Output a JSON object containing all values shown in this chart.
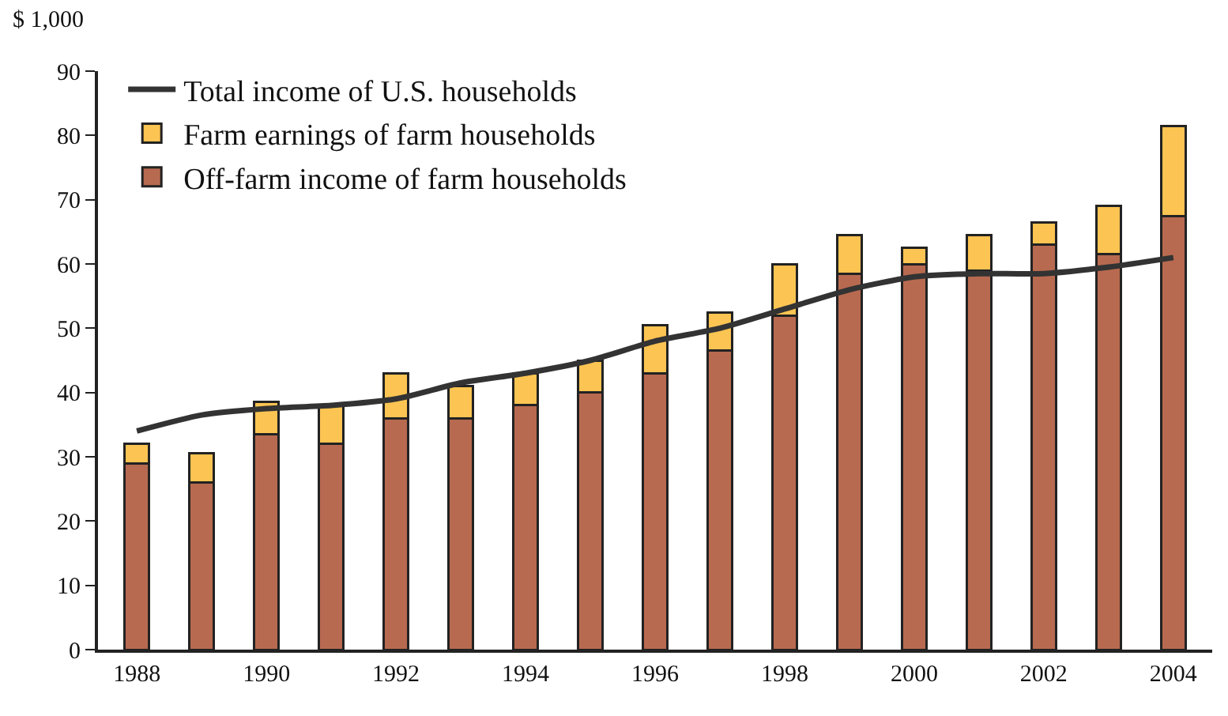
{
  "chart_data": {
    "type": "bar",
    "stacked": true,
    "ylabel": "$ 1,000",
    "x": [
      1988,
      1989,
      1990,
      1991,
      1992,
      1993,
      1994,
      1995,
      1996,
      1997,
      1998,
      1999,
      2000,
      2001,
      2002,
      2003,
      2004
    ],
    "series": [
      {
        "name": "Off-farm income of farm households",
        "color": "#b86a50",
        "values": [
          29,
          26,
          33.5,
          32,
          36,
          36,
          38,
          40,
          43,
          46.5,
          52,
          58.5,
          60,
          59,
          63,
          61.5,
          67.5
        ]
      },
      {
        "name": "Farm earnings of farm households",
        "color": "#fcc452",
        "values": [
          3,
          4.5,
          5,
          6,
          7,
          5,
          5,
          5,
          7.5,
          6,
          8,
          6,
          2.5,
          5.5,
          3.5,
          7.5,
          14
        ]
      },
      {
        "name": "Total income of U.S. households",
        "type": "line",
        "color": "#333333",
        "values": [
          34,
          36.5,
          37.5,
          38,
          39,
          41.5,
          43,
          45,
          48,
          50,
          53,
          56,
          58,
          58.5,
          58.5,
          59.5,
          61
        ]
      }
    ],
    "xlim": [
      1987.4,
      2004.6
    ],
    "xticks": [
      1988,
      1990,
      1992,
      1994,
      1996,
      1998,
      2000,
      2002,
      2004
    ],
    "ylim": [
      0,
      90
    ],
    "yticks": [
      0,
      10,
      20,
      30,
      40,
      50,
      60,
      70,
      80,
      90
    ],
    "grid": false,
    "legend": "top left",
    "marker": "none",
    "line_style": "solid"
  }
}
